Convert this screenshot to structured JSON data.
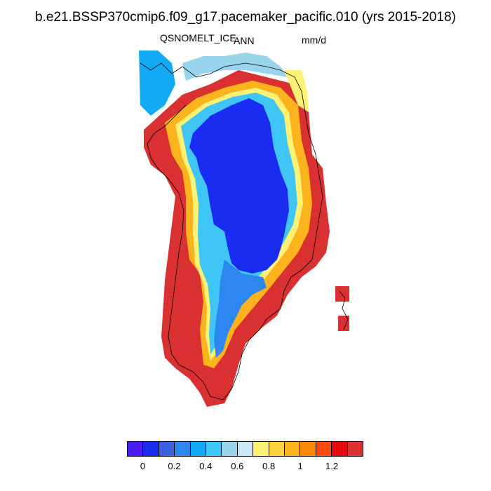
{
  "title": "b.e21.BSSP370cmip6.f09_g17.pacemaker_pacific.010 (yrs 2015-2018)",
  "variable": "QSNOMELT_ICE",
  "period": "ANN",
  "units": "mm/d",
  "colorbar": {
    "colors": [
      "#4a1ef0",
      "#1a2cf0",
      "#3a60e0",
      "#2e86f0",
      "#13aaf5",
      "#3fc6f6",
      "#98d4ec",
      "#c9e8f2",
      "#fdf176",
      "#fcd33a",
      "#fdb31d",
      "#fd8a05",
      "#fb4a0c",
      "#e80b0b",
      "#d93131"
    ],
    "tick_labels": [
      "0",
      "0.2",
      "0.4",
      "0.6",
      "0.8",
      "1",
      "1.2"
    ]
  }
}
